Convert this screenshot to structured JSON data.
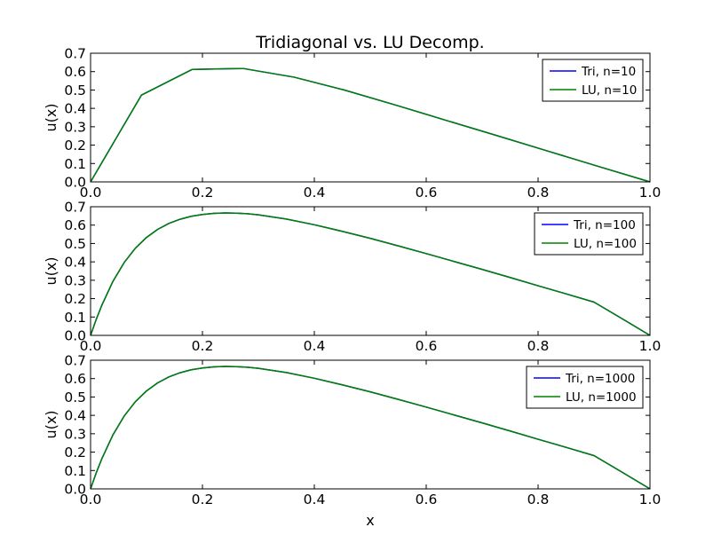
{
  "figure": {
    "title": "Tridiagonal vs. LU Decomp.",
    "xlabel": "x"
  },
  "chart_data": [
    {
      "type": "line",
      "title": "Tridiagonal vs. LU Decomp.",
      "xlabel": "",
      "ylabel": "u(x)",
      "xlim": [
        0.0,
        1.0
      ],
      "ylim": [
        0.0,
        0.7
      ],
      "xticks": [
        "0.0",
        "0.2",
        "0.4",
        "0.6",
        "0.8",
        "1.0"
      ],
      "yticks": [
        "0.0",
        "0.1",
        "0.2",
        "0.3",
        "0.4",
        "0.5",
        "0.6",
        "0.7"
      ],
      "grid": false,
      "legend_position": "top-right",
      "series": [
        {
          "name": "Tri, n=10",
          "color": "#0000ff",
          "x": [
            0.0,
            0.0909,
            0.1818,
            0.2727,
            0.3636,
            0.4545,
            0.5455,
            0.6364,
            0.7273,
            0.8182,
            0.9091,
            1.0
          ],
          "y": [
            0.0,
            0.472,
            0.612,
            0.617,
            0.57,
            0.499,
            0.418,
            0.334,
            0.251,
            0.167,
            0.083,
            0.0
          ]
        },
        {
          "name": "LU, n=10",
          "color": "#008000",
          "x": [
            0.0,
            0.0909,
            0.1818,
            0.2727,
            0.3636,
            0.4545,
            0.5455,
            0.6364,
            0.7273,
            0.8182,
            0.9091,
            1.0
          ],
          "y": [
            0.0,
            0.472,
            0.612,
            0.617,
            0.57,
            0.499,
            0.418,
            0.334,
            0.251,
            0.167,
            0.083,
            0.0
          ]
        }
      ]
    },
    {
      "type": "line",
      "xlabel": "",
      "ylabel": "u(x)",
      "xlim": [
        0.0,
        1.0
      ],
      "ylim": [
        0.0,
        0.7
      ],
      "xticks": [
        "0.0",
        "0.2",
        "0.4",
        "0.6",
        "0.8",
        "1.0"
      ],
      "yticks": [
        "0.0",
        "0.1",
        "0.2",
        "0.3",
        "0.4",
        "0.5",
        "0.6",
        "0.7"
      ],
      "grid": false,
      "legend_position": "top-right",
      "series": [
        {
          "name": "Tri, n=100",
          "color": "#0000ff",
          "x": [
            0.0,
            0.01,
            0.02,
            0.04,
            0.06,
            0.08,
            0.1,
            0.12,
            0.14,
            0.16,
            0.18,
            0.2,
            0.22,
            0.24,
            0.26,
            0.28,
            0.3,
            0.35,
            0.4,
            0.45,
            0.5,
            0.55,
            0.6,
            0.65,
            0.7,
            0.75,
            0.8,
            0.85,
            0.9,
            0.95,
            1.0
          ],
          "y": [
            0.0,
            0.086,
            0.163,
            0.294,
            0.396,
            0.474,
            0.533,
            0.577,
            0.609,
            0.632,
            0.648,
            0.658,
            0.664,
            0.666,
            0.665,
            0.662,
            0.656,
            0.633,
            0.602,
            0.566,
            0.528,
            0.487,
            0.445,
            0.402,
            0.359,
            0.315,
            0.27,
            0.226,
            0.181,
            0.091,
            0.0
          ]
        },
        {
          "name": "LU, n=100",
          "color": "#008000",
          "x": [
            0.0,
            0.01,
            0.02,
            0.04,
            0.06,
            0.08,
            0.1,
            0.12,
            0.14,
            0.16,
            0.18,
            0.2,
            0.22,
            0.24,
            0.26,
            0.28,
            0.3,
            0.35,
            0.4,
            0.45,
            0.5,
            0.55,
            0.6,
            0.65,
            0.7,
            0.75,
            0.8,
            0.85,
            0.9,
            0.95,
            1.0
          ],
          "y": [
            0.0,
            0.086,
            0.163,
            0.294,
            0.396,
            0.474,
            0.533,
            0.577,
            0.609,
            0.632,
            0.648,
            0.658,
            0.664,
            0.666,
            0.665,
            0.662,
            0.656,
            0.633,
            0.602,
            0.566,
            0.528,
            0.487,
            0.445,
            0.402,
            0.359,
            0.315,
            0.27,
            0.226,
            0.181,
            0.091,
            0.0
          ]
        }
      ]
    },
    {
      "type": "line",
      "xlabel": "x",
      "ylabel": "u(x)",
      "xlim": [
        0.0,
        1.0
      ],
      "ylim": [
        0.0,
        0.7
      ],
      "xticks": [
        "0.0",
        "0.2",
        "0.4",
        "0.6",
        "0.8",
        "1.0"
      ],
      "yticks": [
        "0.0",
        "0.1",
        "0.2",
        "0.3",
        "0.4",
        "0.5",
        "0.6",
        "0.7"
      ],
      "grid": false,
      "legend_position": "top-right",
      "series": [
        {
          "name": "Tri, n=1000",
          "color": "#0000ff",
          "x": [
            0.0,
            0.01,
            0.02,
            0.04,
            0.06,
            0.08,
            0.1,
            0.12,
            0.14,
            0.16,
            0.18,
            0.2,
            0.22,
            0.24,
            0.26,
            0.28,
            0.3,
            0.35,
            0.4,
            0.45,
            0.5,
            0.55,
            0.6,
            0.65,
            0.7,
            0.75,
            0.8,
            0.85,
            0.9,
            0.95,
            1.0
          ],
          "y": [
            0.0,
            0.086,
            0.163,
            0.294,
            0.396,
            0.474,
            0.533,
            0.577,
            0.609,
            0.632,
            0.648,
            0.658,
            0.664,
            0.666,
            0.665,
            0.662,
            0.656,
            0.633,
            0.602,
            0.566,
            0.528,
            0.487,
            0.445,
            0.402,
            0.359,
            0.315,
            0.27,
            0.226,
            0.181,
            0.091,
            0.0
          ]
        },
        {
          "name": "LU, n=1000",
          "color": "#008000",
          "x": [
            0.0,
            0.01,
            0.02,
            0.04,
            0.06,
            0.08,
            0.1,
            0.12,
            0.14,
            0.16,
            0.18,
            0.2,
            0.22,
            0.24,
            0.26,
            0.28,
            0.3,
            0.35,
            0.4,
            0.45,
            0.5,
            0.55,
            0.6,
            0.65,
            0.7,
            0.75,
            0.8,
            0.85,
            0.9,
            0.95,
            1.0
          ],
          "y": [
            0.0,
            0.086,
            0.163,
            0.294,
            0.396,
            0.474,
            0.533,
            0.577,
            0.609,
            0.632,
            0.648,
            0.658,
            0.664,
            0.666,
            0.665,
            0.662,
            0.656,
            0.633,
            0.602,
            0.566,
            0.528,
            0.487,
            0.445,
            0.402,
            0.359,
            0.315,
            0.27,
            0.226,
            0.181,
            0.091,
            0.0
          ]
        }
      ]
    }
  ]
}
